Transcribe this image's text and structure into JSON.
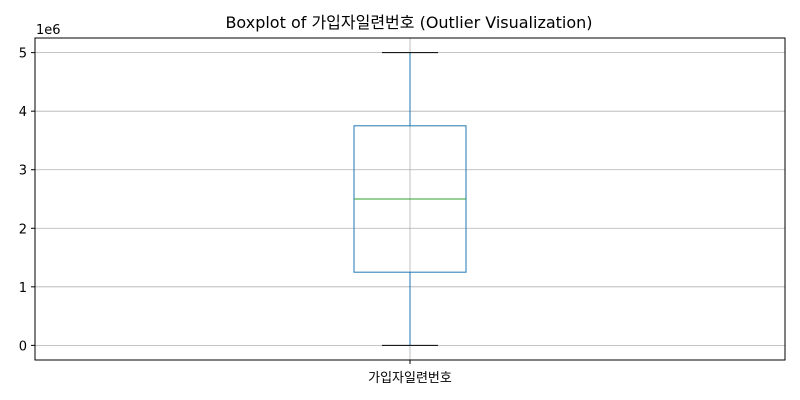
{
  "chart_data": {
    "type": "boxplot",
    "title": "Boxplot of 가입자일련번호 (Outlier Visualization)",
    "xlabel": "",
    "ylabel": "",
    "y_offset_label": "1e6",
    "y_scale": 1000000,
    "ylim": [
      -250000,
      5250000
    ],
    "y_ticks": [
      0,
      1000000,
      2000000,
      3000000,
      4000000,
      5000000
    ],
    "y_tick_labels": [
      "0",
      "1",
      "2",
      "3",
      "4",
      "5"
    ],
    "grid": true,
    "categories": [
      "가입자일련번호"
    ],
    "boxes": [
      {
        "name": "가입자일련번호",
        "whisker_low": 0,
        "q1": 1250000,
        "median": 2500000,
        "q3": 3750000,
        "whisker_high": 5000000,
        "outliers": []
      }
    ],
    "colors": {
      "box": "#1f77b4",
      "median": "#2ca02c",
      "whisker": "#1f77b4",
      "cap": "#000000",
      "grid": "#b0b0b0",
      "axis": "#000000"
    }
  }
}
